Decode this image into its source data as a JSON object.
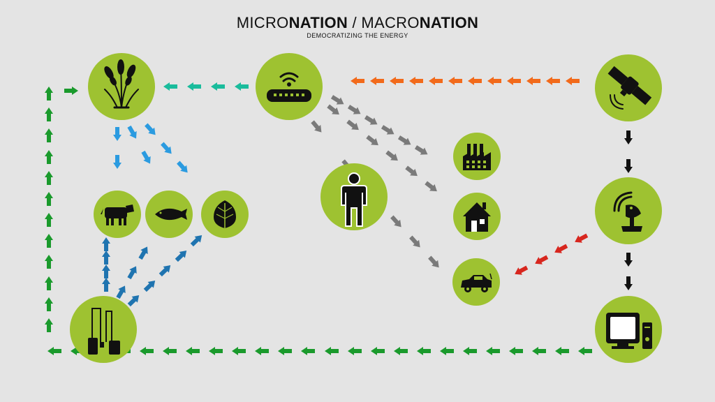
{
  "title": {
    "part1_light": "MICRO",
    "part1_bold": "NATION",
    "separator": " / ",
    "part2_light": "MACRO",
    "part2_bold": "NATION"
  },
  "subtitle": "DEMOCRATIZING THE ENERGY",
  "colors": {
    "node_fill": "#9ec231",
    "background": "#e4e4e4",
    "teal_arrow": "#1abc9c",
    "orange_arrow": "#f26a1b",
    "gray_arrow": "#7a7a7a",
    "black_arrow": "#111111",
    "red_arrow": "#d7261e",
    "green_arrow": "#1a9a2c",
    "light_blue_arrow": "#2b9be0",
    "dark_blue_arrow": "#1f74b0"
  },
  "nodes": [
    {
      "id": "wheat",
      "icon": "wheat-icon"
    },
    {
      "id": "router",
      "icon": "router-icon"
    },
    {
      "id": "satellite",
      "icon": "satellite-icon"
    },
    {
      "id": "cow",
      "icon": "cow-icon"
    },
    {
      "id": "fish",
      "icon": "fish-icon"
    },
    {
      "id": "leaf",
      "icon": "leaf-icon"
    },
    {
      "id": "factory",
      "icon": "factory-icon"
    },
    {
      "id": "person",
      "icon": "person-icon"
    },
    {
      "id": "house",
      "icon": "house-icon"
    },
    {
      "id": "car",
      "icon": "car-icon"
    },
    {
      "id": "dish",
      "icon": "satellite-dish-icon"
    },
    {
      "id": "battery",
      "icon": "battery-station-icon"
    },
    {
      "id": "computer",
      "icon": "computer-icon"
    }
  ]
}
